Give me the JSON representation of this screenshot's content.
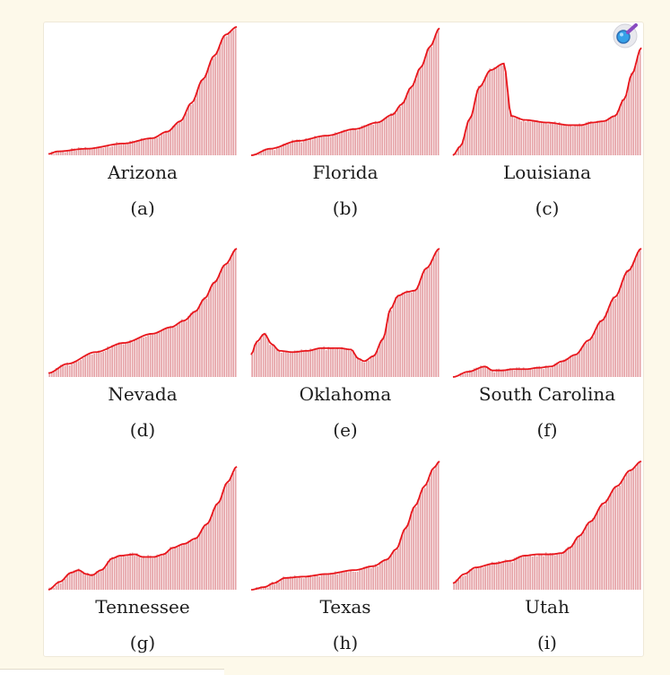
{
  "colors": {
    "bar": "#e5a3a7",
    "line": "#e8161c",
    "background": "#fdf9ea"
  },
  "zoom_icon": "magnifier-icon",
  "chart_data": [
    {
      "type": "bar",
      "label": "Arizona",
      "sub": "(a)",
      "ylim": [
        0,
        1
      ],
      "knots": [
        [
          0,
          0.01
        ],
        [
          0.05,
          0.03
        ],
        [
          0.2,
          0.05
        ],
        [
          0.4,
          0.09
        ],
        [
          0.55,
          0.13
        ],
        [
          0.63,
          0.18
        ],
        [
          0.7,
          0.26
        ],
        [
          0.76,
          0.4
        ],
        [
          0.82,
          0.58
        ],
        [
          0.88,
          0.76
        ],
        [
          0.94,
          0.92
        ],
        [
          1,
          0.98
        ]
      ]
    },
    {
      "type": "bar",
      "label": "Florida",
      "sub": "(b)",
      "ylim": [
        0,
        1
      ],
      "knots": [
        [
          0,
          0.0
        ],
        [
          0.1,
          0.05
        ],
        [
          0.25,
          0.11
        ],
        [
          0.4,
          0.15
        ],
        [
          0.55,
          0.2
        ],
        [
          0.67,
          0.25
        ],
        [
          0.75,
          0.31
        ],
        [
          0.8,
          0.39
        ],
        [
          0.85,
          0.52
        ],
        [
          0.9,
          0.67
        ],
        [
          0.95,
          0.83
        ],
        [
          1,
          0.97
        ]
      ]
    },
    {
      "type": "bar",
      "label": "Louisiana",
      "sub": "(c)",
      "ylim": [
        0,
        1
      ],
      "knots": [
        [
          0,
          0.0
        ],
        [
          0.04,
          0.07
        ],
        [
          0.09,
          0.28
        ],
        [
          0.14,
          0.52
        ],
        [
          0.2,
          0.65
        ],
        [
          0.27,
          0.7
        ],
        [
          0.31,
          0.3
        ],
        [
          0.38,
          0.27
        ],
        [
          0.5,
          0.25
        ],
        [
          0.62,
          0.23
        ],
        [
          0.68,
          0.23
        ],
        [
          0.74,
          0.25
        ],
        [
          0.8,
          0.26
        ],
        [
          0.86,
          0.3
        ],
        [
          0.91,
          0.43
        ],
        [
          0.95,
          0.62
        ],
        [
          1,
          0.82
        ]
      ]
    },
    {
      "type": "bar",
      "label": "Nevada",
      "sub": "(d)",
      "ylim": [
        0,
        1
      ],
      "knots": [
        [
          0,
          0.03
        ],
        [
          0.1,
          0.1
        ],
        [
          0.25,
          0.19
        ],
        [
          0.4,
          0.26
        ],
        [
          0.55,
          0.33
        ],
        [
          0.65,
          0.38
        ],
        [
          0.72,
          0.43
        ],
        [
          0.78,
          0.5
        ],
        [
          0.83,
          0.6
        ],
        [
          0.88,
          0.72
        ],
        [
          0.94,
          0.86
        ],
        [
          1,
          0.98
        ]
      ]
    },
    {
      "type": "bar",
      "label": "Oklahoma",
      "sub": "(e)",
      "ylim": [
        0,
        1
      ],
      "knots": [
        [
          0,
          0.17
        ],
        [
          0.03,
          0.27
        ],
        [
          0.07,
          0.33
        ],
        [
          0.11,
          0.25
        ],
        [
          0.15,
          0.2
        ],
        [
          0.22,
          0.19
        ],
        [
          0.3,
          0.2
        ],
        [
          0.37,
          0.22
        ],
        [
          0.47,
          0.22
        ],
        [
          0.53,
          0.21
        ],
        [
          0.57,
          0.14
        ],
        [
          0.6,
          0.12
        ],
        [
          0.65,
          0.16
        ],
        [
          0.7,
          0.29
        ],
        [
          0.74,
          0.52
        ],
        [
          0.78,
          0.62
        ],
        [
          0.83,
          0.65
        ],
        [
          0.87,
          0.66
        ],
        [
          0.93,
          0.83
        ],
        [
          1,
          0.98
        ]
      ]
    },
    {
      "type": "bar",
      "label": "South Carolina",
      "sub": "(f)",
      "ylim": [
        0,
        1
      ],
      "knots": [
        [
          0,
          0.0
        ],
        [
          0.08,
          0.04
        ],
        [
          0.17,
          0.08
        ],
        [
          0.21,
          0.05
        ],
        [
          0.26,
          0.05
        ],
        [
          0.32,
          0.06
        ],
        [
          0.39,
          0.06
        ],
        [
          0.45,
          0.07
        ],
        [
          0.52,
          0.08
        ],
        [
          0.58,
          0.12
        ],
        [
          0.65,
          0.17
        ],
        [
          0.72,
          0.28
        ],
        [
          0.79,
          0.43
        ],
        [
          0.86,
          0.61
        ],
        [
          0.93,
          0.81
        ],
        [
          1,
          0.98
        ]
      ]
    },
    {
      "type": "bar",
      "label": "Tennessee",
      "sub": "(g)",
      "ylim": [
        0,
        1
      ],
      "knots": [
        [
          0,
          0.0
        ],
        [
          0.06,
          0.06
        ],
        [
          0.12,
          0.13
        ],
        [
          0.16,
          0.15
        ],
        [
          0.2,
          0.12
        ],
        [
          0.23,
          0.11
        ],
        [
          0.28,
          0.15
        ],
        [
          0.34,
          0.24
        ],
        [
          0.38,
          0.26
        ],
        [
          0.46,
          0.27
        ],
        [
          0.5,
          0.25
        ],
        [
          0.56,
          0.25
        ],
        [
          0.61,
          0.27
        ],
        [
          0.66,
          0.32
        ],
        [
          0.72,
          0.35
        ],
        [
          0.78,
          0.39
        ],
        [
          0.84,
          0.5
        ],
        [
          0.9,
          0.66
        ],
        [
          0.95,
          0.82
        ],
        [
          1,
          0.94
        ]
      ]
    },
    {
      "type": "bar",
      "label": "Texas",
      "sub": "(h)",
      "ylim": [
        0,
        1
      ],
      "knots": [
        [
          0,
          0.0
        ],
        [
          0.07,
          0.02
        ],
        [
          0.12,
          0.05
        ],
        [
          0.18,
          0.09
        ],
        [
          0.28,
          0.1
        ],
        [
          0.4,
          0.12
        ],
        [
          0.55,
          0.15
        ],
        [
          0.65,
          0.18
        ],
        [
          0.72,
          0.23
        ],
        [
          0.77,
          0.31
        ],
        [
          0.82,
          0.47
        ],
        [
          0.87,
          0.64
        ],
        [
          0.92,
          0.79
        ],
        [
          0.97,
          0.93
        ],
        [
          1,
          0.98
        ]
      ]
    },
    {
      "type": "bar",
      "label": "Utah",
      "sub": "(i)",
      "ylim": [
        0,
        1
      ],
      "knots": [
        [
          0,
          0.05
        ],
        [
          0.06,
          0.12
        ],
        [
          0.12,
          0.17
        ],
        [
          0.22,
          0.2
        ],
        [
          0.3,
          0.22
        ],
        [
          0.38,
          0.26
        ],
        [
          0.45,
          0.27
        ],
        [
          0.52,
          0.27
        ],
        [
          0.58,
          0.28
        ],
        [
          0.62,
          0.32
        ],
        [
          0.67,
          0.41
        ],
        [
          0.73,
          0.52
        ],
        [
          0.8,
          0.66
        ],
        [
          0.87,
          0.79
        ],
        [
          0.94,
          0.91
        ],
        [
          1,
          0.98
        ]
      ]
    }
  ]
}
